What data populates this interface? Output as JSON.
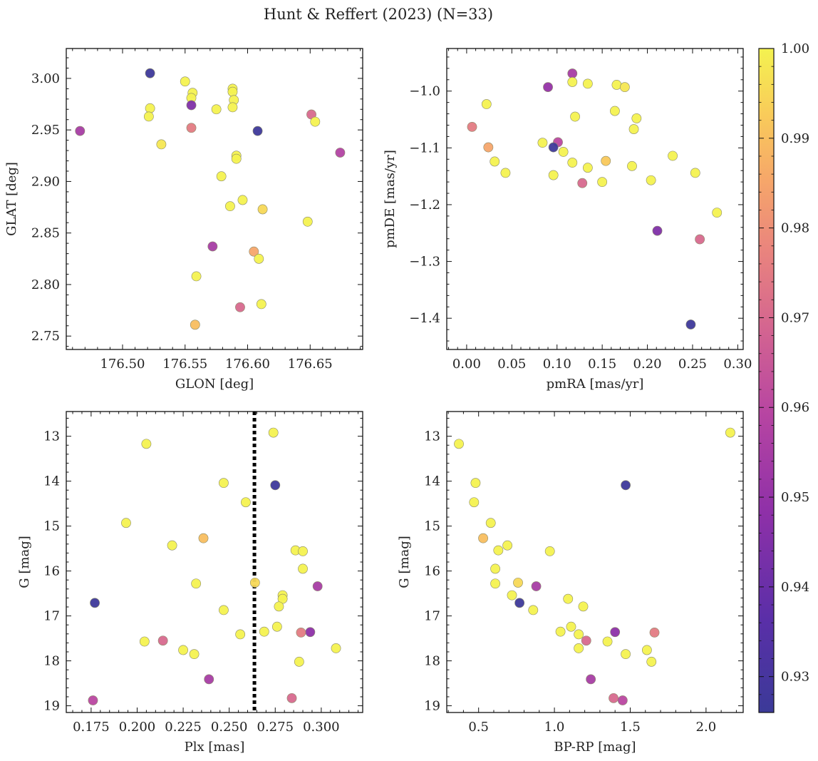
{
  "figure": {
    "title": "Hunt & Reffert (2023) (N=33)"
  },
  "colorbar": {
    "min": 0.926,
    "max": 1.0,
    "ticks": [
      0.93,
      0.94,
      0.95,
      0.96,
      0.97,
      0.98,
      0.99,
      1.0
    ],
    "tick_labels": [
      "0.93",
      "0.94",
      "0.95",
      "0.96",
      "0.97",
      "0.98",
      "0.99",
      "1.00"
    ],
    "colormap": "plasma"
  },
  "chart_data": [
    {
      "type": "scatter",
      "xlabel": "GLON [deg]",
      "ylabel": "GLAT [deg]",
      "xlim": [
        176.455,
        176.692
      ],
      "ylim": [
        2.737,
        3.029
      ],
      "x_ticks": [
        176.45,
        176.5,
        176.55,
        176.6,
        176.65
      ],
      "x_tick_labels": [
        "176.45",
        "176.50",
        "176.55",
        "176.60",
        "176.65"
      ],
      "y_ticks": [
        2.75,
        2.8,
        2.85,
        2.9,
        2.95,
        3.0
      ],
      "y_tick_labels": [
        "2.75",
        "2.80",
        "2.85",
        "2.90",
        "2.95",
        "3.00"
      ],
      "points": [
        {
          "x": 176.522,
          "y": 3.005,
          "c": 0.927
        },
        {
          "x": 176.55,
          "y": 2.997,
          "c": 1.0
        },
        {
          "x": 176.556,
          "y": 2.986,
          "c": 1.0
        },
        {
          "x": 176.555,
          "y": 2.981,
          "c": 1.0
        },
        {
          "x": 176.588,
          "y": 2.99,
          "c": 1.0
        },
        {
          "x": 176.588,
          "y": 2.987,
          "c": 1.0
        },
        {
          "x": 176.589,
          "y": 2.979,
          "c": 1.0
        },
        {
          "x": 176.588,
          "y": 2.972,
          "c": 1.0
        },
        {
          "x": 176.575,
          "y": 2.97,
          "c": 1.0
        },
        {
          "x": 176.522,
          "y": 2.971,
          "c": 1.0
        },
        {
          "x": 176.521,
          "y": 2.963,
          "c": 1.0
        },
        {
          "x": 176.555,
          "y": 2.974,
          "c": 0.945
        },
        {
          "x": 176.555,
          "y": 2.952,
          "c": 0.975
        },
        {
          "x": 176.608,
          "y": 2.949,
          "c": 0.927
        },
        {
          "x": 176.466,
          "y": 2.949,
          "c": 0.955
        },
        {
          "x": 176.651,
          "y": 2.965,
          "c": 0.97
        },
        {
          "x": 176.654,
          "y": 2.958,
          "c": 1.0
        },
        {
          "x": 176.531,
          "y": 2.936,
          "c": 0.998
        },
        {
          "x": 176.674,
          "y": 2.928,
          "c": 0.958
        },
        {
          "x": 176.591,
          "y": 2.925,
          "c": 1.0
        },
        {
          "x": 176.591,
          "y": 2.922,
          "c": 1.0
        },
        {
          "x": 176.579,
          "y": 2.905,
          "c": 1.0
        },
        {
          "x": 176.596,
          "y": 2.882,
          "c": 1.0
        },
        {
          "x": 176.586,
          "y": 2.876,
          "c": 1.0
        },
        {
          "x": 176.612,
          "y": 2.873,
          "c": 0.995
        },
        {
          "x": 176.648,
          "y": 2.861,
          "c": 1.0
        },
        {
          "x": 176.572,
          "y": 2.837,
          "c": 0.955
        },
        {
          "x": 176.605,
          "y": 2.832,
          "c": 0.985
        },
        {
          "x": 176.609,
          "y": 2.825,
          "c": 1.0
        },
        {
          "x": 176.559,
          "y": 2.808,
          "c": 1.0
        },
        {
          "x": 176.611,
          "y": 2.781,
          "c": 1.0
        },
        {
          "x": 176.594,
          "y": 2.778,
          "c": 0.97
        },
        {
          "x": 176.558,
          "y": 2.761,
          "c": 0.99
        }
      ]
    },
    {
      "type": "scatter",
      "xlabel": "pmRA [mas/yr]",
      "ylabel": "pmDE [mas/yr]",
      "xlim": [
        -0.022,
        0.306
      ],
      "ylim": [
        -1.455,
        -0.925
      ],
      "x_ticks": [
        0.0,
        0.05,
        0.1,
        0.15,
        0.2,
        0.25,
        0.3
      ],
      "x_tick_labels": [
        "0.00",
        "0.05",
        "0.10",
        "0.15",
        "0.20",
        "0.25",
        "0.30"
      ],
      "y_ticks": [
        -1.4,
        -1.3,
        -1.2,
        -1.1,
        -1.0
      ],
      "y_tick_labels": [
        "−1.4",
        "−1.3",
        "−1.2",
        "−1.1",
        "−1.0"
      ],
      "points": [
        {
          "x": 0.117,
          "y": -0.969,
          "c": 0.955
        },
        {
          "x": 0.117,
          "y": -0.984,
          "c": 1.0
        },
        {
          "x": 0.134,
          "y": -0.987,
          "c": 1.0
        },
        {
          "x": 0.166,
          "y": -0.989,
          "c": 1.0
        },
        {
          "x": 0.175,
          "y": -0.993,
          "c": 0.998
        },
        {
          "x": 0.09,
          "y": -0.993,
          "c": 0.95
        },
        {
          "x": 0.022,
          "y": -1.023,
          "c": 1.0
        },
        {
          "x": 0.164,
          "y": -1.035,
          "c": 1.0
        },
        {
          "x": 0.12,
          "y": -1.045,
          "c": 1.0
        },
        {
          "x": 0.188,
          "y": -1.048,
          "c": 1.0
        },
        {
          "x": 0.006,
          "y": -1.063,
          "c": 0.975
        },
        {
          "x": 0.185,
          "y": -1.067,
          "c": 1.0
        },
        {
          "x": 0.101,
          "y": -1.09,
          "c": 0.96
        },
        {
          "x": 0.084,
          "y": -1.091,
          "c": 1.0
        },
        {
          "x": 0.096,
          "y": -1.099,
          "c": 0.927
        },
        {
          "x": 0.024,
          "y": -1.099,
          "c": 0.985
        },
        {
          "x": 0.107,
          "y": -1.107,
          "c": 1.0
        },
        {
          "x": 0.228,
          "y": -1.114,
          "c": 1.0
        },
        {
          "x": 0.031,
          "y": -1.124,
          "c": 1.0
        },
        {
          "x": 0.154,
          "y": -1.123,
          "c": 0.992
        },
        {
          "x": 0.117,
          "y": -1.126,
          "c": 1.0
        },
        {
          "x": 0.183,
          "y": -1.132,
          "c": 1.0
        },
        {
          "x": 0.134,
          "y": -1.135,
          "c": 1.0
        },
        {
          "x": 0.043,
          "y": -1.144,
          "c": 1.0
        },
        {
          "x": 0.253,
          "y": -1.144,
          "c": 1.0
        },
        {
          "x": 0.096,
          "y": -1.148,
          "c": 1.0
        },
        {
          "x": 0.204,
          "y": -1.157,
          "c": 1.0
        },
        {
          "x": 0.15,
          "y": -1.16,
          "c": 1.0
        },
        {
          "x": 0.128,
          "y": -1.162,
          "c": 0.97
        },
        {
          "x": 0.277,
          "y": -1.214,
          "c": 1.0
        },
        {
          "x": 0.211,
          "y": -1.246,
          "c": 0.945
        },
        {
          "x": 0.258,
          "y": -1.261,
          "c": 0.97
        },
        {
          "x": 0.248,
          "y": -1.411,
          "c": 0.927
        }
      ]
    },
    {
      "type": "scatter",
      "xlabel": "Plx [mas]",
      "ylabel": "G [mag]",
      "xlim": [
        0.1615,
        0.3225
      ],
      "ylim": [
        19.15,
        12.45
      ],
      "y_inverted": true,
      "vline_x": 0.2637,
      "x_ticks": [
        0.175,
        0.2,
        0.225,
        0.25,
        0.275,
        0.3
      ],
      "x_tick_labels": [
        "0.175",
        "0.200",
        "0.225",
        "0.250",
        "0.275",
        "0.300"
      ],
      "y_ticks": [
        13,
        14,
        15,
        16,
        17,
        18,
        19
      ],
      "y_tick_labels": [
        "13",
        "14",
        "15",
        "16",
        "17",
        "18",
        "19"
      ],
      "points": [
        {
          "x": 0.274,
          "y": 12.92,
          "c": 1.0
        },
        {
          "x": 0.205,
          "y": 13.17,
          "c": 1.0
        },
        {
          "x": 0.247,
          "y": 14.04,
          "c": 1.0
        },
        {
          "x": 0.275,
          "y": 14.09,
          "c": 0.927
        },
        {
          "x": 0.259,
          "y": 14.47,
          "c": 1.0
        },
        {
          "x": 0.194,
          "y": 14.93,
          "c": 1.0
        },
        {
          "x": 0.236,
          "y": 15.27,
          "c": 0.99
        },
        {
          "x": 0.219,
          "y": 15.43,
          "c": 1.0
        },
        {
          "x": 0.286,
          "y": 15.54,
          "c": 1.0
        },
        {
          "x": 0.29,
          "y": 15.56,
          "c": 1.0
        },
        {
          "x": 0.29,
          "y": 15.95,
          "c": 1.0
        },
        {
          "x": 0.264,
          "y": 16.26,
          "c": 0.995
        },
        {
          "x": 0.232,
          "y": 16.28,
          "c": 1.0
        },
        {
          "x": 0.298,
          "y": 16.34,
          "c": 0.955
        },
        {
          "x": 0.279,
          "y": 16.54,
          "c": 1.0
        },
        {
          "x": 0.279,
          "y": 16.62,
          "c": 1.0
        },
        {
          "x": 0.177,
          "y": 16.71,
          "c": 0.927
        },
        {
          "x": 0.277,
          "y": 16.79,
          "c": 1.0
        },
        {
          "x": 0.247,
          "y": 16.87,
          "c": 1.0
        },
        {
          "x": 0.276,
          "y": 17.24,
          "c": 1.0
        },
        {
          "x": 0.269,
          "y": 17.35,
          "c": 1.0
        },
        {
          "x": 0.294,
          "y": 17.36,
          "c": 0.948
        },
        {
          "x": 0.289,
          "y": 17.37,
          "c": 0.975
        },
        {
          "x": 0.256,
          "y": 17.41,
          "c": 1.0
        },
        {
          "x": 0.214,
          "y": 17.55,
          "c": 0.97
        },
        {
          "x": 0.204,
          "y": 17.57,
          "c": 1.0
        },
        {
          "x": 0.308,
          "y": 17.72,
          "c": 1.0
        },
        {
          "x": 0.225,
          "y": 17.76,
          "c": 1.0
        },
        {
          "x": 0.231,
          "y": 17.85,
          "c": 1.0
        },
        {
          "x": 0.288,
          "y": 18.02,
          "c": 1.0
        },
        {
          "x": 0.239,
          "y": 18.41,
          "c": 0.955
        },
        {
          "x": 0.284,
          "y": 18.83,
          "c": 0.97
        },
        {
          "x": 0.176,
          "y": 18.88,
          "c": 0.96
        }
      ]
    },
    {
      "type": "scatter",
      "xlabel": "BP-RP [mag]",
      "ylabel": "G [mag]",
      "xlim": [
        0.29,
        2.245
      ],
      "ylim": [
        19.15,
        12.45
      ],
      "y_inverted": true,
      "x_ticks": [
        0.5,
        1.0,
        1.5,
        2.0
      ],
      "x_tick_labels": [
        "0.5",
        "1.0",
        "1.5",
        "2.0"
      ],
      "y_ticks": [
        13,
        14,
        15,
        16,
        17,
        18,
        19
      ],
      "y_tick_labels": [
        "13",
        "14",
        "15",
        "16",
        "17",
        "18",
        "19"
      ],
      "points": [
        {
          "x": 2.16,
          "y": 12.92,
          "c": 1.0
        },
        {
          "x": 0.37,
          "y": 13.17,
          "c": 1.0
        },
        {
          "x": 0.48,
          "y": 14.04,
          "c": 1.0
        },
        {
          "x": 1.47,
          "y": 14.09,
          "c": 0.927
        },
        {
          "x": 0.47,
          "y": 14.47,
          "c": 1.0
        },
        {
          "x": 0.58,
          "y": 14.93,
          "c": 1.0
        },
        {
          "x": 0.53,
          "y": 15.27,
          "c": 0.99
        },
        {
          "x": 0.69,
          "y": 15.43,
          "c": 1.0
        },
        {
          "x": 0.63,
          "y": 15.54,
          "c": 1.0
        },
        {
          "x": 0.97,
          "y": 15.56,
          "c": 1.0
        },
        {
          "x": 0.61,
          "y": 15.95,
          "c": 1.0
        },
        {
          "x": 0.76,
          "y": 16.26,
          "c": 0.995
        },
        {
          "x": 0.61,
          "y": 16.28,
          "c": 1.0
        },
        {
          "x": 0.88,
          "y": 16.34,
          "c": 0.955
        },
        {
          "x": 0.72,
          "y": 16.54,
          "c": 1.0
        },
        {
          "x": 1.09,
          "y": 16.62,
          "c": 1.0
        },
        {
          "x": 0.77,
          "y": 16.71,
          "c": 0.927
        },
        {
          "x": 1.19,
          "y": 16.79,
          "c": 1.0
        },
        {
          "x": 0.86,
          "y": 16.87,
          "c": 1.0
        },
        {
          "x": 1.11,
          "y": 17.24,
          "c": 1.0
        },
        {
          "x": 1.04,
          "y": 17.35,
          "c": 1.0
        },
        {
          "x": 1.4,
          "y": 17.36,
          "c": 0.948
        },
        {
          "x": 1.66,
          "y": 17.37,
          "c": 0.975
        },
        {
          "x": 1.16,
          "y": 17.41,
          "c": 1.0
        },
        {
          "x": 1.21,
          "y": 17.55,
          "c": 0.97
        },
        {
          "x": 1.35,
          "y": 17.57,
          "c": 1.0
        },
        {
          "x": 1.16,
          "y": 17.72,
          "c": 1.0
        },
        {
          "x": 1.61,
          "y": 17.76,
          "c": 1.0
        },
        {
          "x": 1.47,
          "y": 17.85,
          "c": 1.0
        },
        {
          "x": 1.64,
          "y": 18.02,
          "c": 1.0
        },
        {
          "x": 1.24,
          "y": 18.41,
          "c": 0.955
        },
        {
          "x": 1.39,
          "y": 18.83,
          "c": 0.97
        },
        {
          "x": 1.45,
          "y": 18.88,
          "c": 0.96
        }
      ]
    }
  ]
}
